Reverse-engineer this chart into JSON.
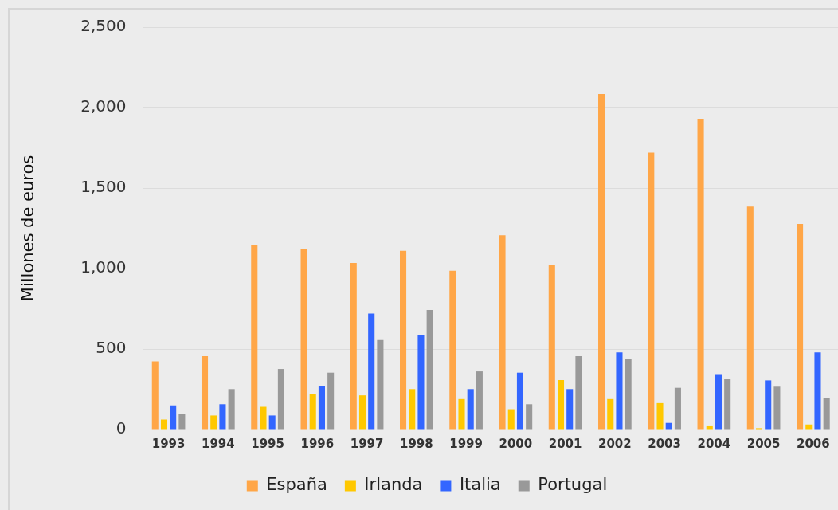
{
  "chart_data": {
    "type": "bar",
    "ylabel": "Millones de euros",
    "categories": [
      "1993",
      "1994",
      "1995",
      "1996",
      "1997",
      "1998",
      "1999",
      "2000",
      "2001",
      "2002",
      "2003",
      "2004",
      "2005",
      "2006"
    ],
    "series": [
      {
        "name": "España",
        "color": "#ffa647",
        "values": [
          423,
          455,
          1145,
          1120,
          1035,
          1110,
          987,
          1207,
          1022,
          2084,
          1720,
          1931,
          1385,
          1277
        ]
      },
      {
        "name": "Irlanda",
        "color": "#ffc800",
        "values": [
          62,
          87,
          141,
          220,
          212,
          251,
          189,
          126,
          307,
          189,
          164,
          25,
          8,
          31
        ]
      },
      {
        "name": "Italia",
        "color": "#3366ff",
        "values": [
          150,
          157,
          87,
          268,
          720,
          587,
          251,
          353,
          251,
          479,
          41,
          344,
          305,
          479
        ]
      },
      {
        "name": "Portugal",
        "color": "#999999",
        "values": [
          95,
          251,
          376,
          353,
          556,
          743,
          361,
          157,
          456,
          440,
          259,
          313,
          266,
          195
        ]
      }
    ],
    "ylim": [
      0,
      2500
    ],
    "yticks": [
      0,
      {
        "value": 500,
        "label": "500"
      },
      {
        "value": 1000,
        "label": "1,000"
      },
      {
        "value": 1500,
        "label": "1,500"
      },
      {
        "value": 2000,
        "label": "2,000"
      },
      {
        "value": 2500,
        "label": "2,500"
      }
    ],
    "grid": "y",
    "legend": "bottom"
  }
}
